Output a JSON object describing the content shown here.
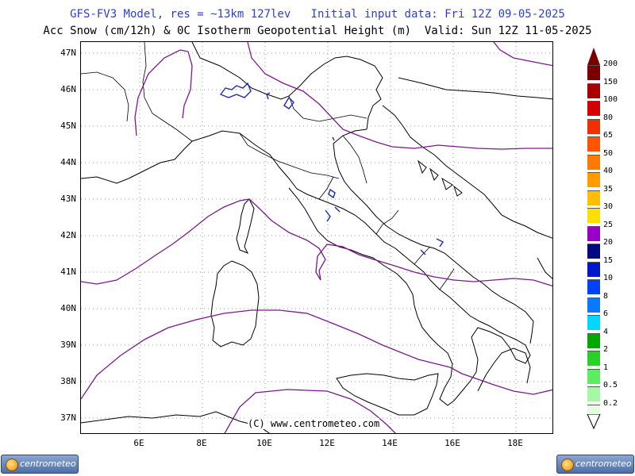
{
  "header": {
    "line1": "GFS-FV3 Model, res = ~13km 127lev   Initial input data: Fri 12Z 09-05-2025",
    "line2": "Acc Snow (cm/12h) & 0C Isotherm Geopotential Height (m)  Valid: Sun 12Z 11-05-2025"
  },
  "map": {
    "lat_labels": [
      "47N",
      "46N",
      "45N",
      "44N",
      "43N",
      "42N",
      "41N",
      "40N",
      "39N",
      "38N",
      "37N"
    ],
    "lon_labels": [
      "6E",
      "8E",
      "10E",
      "12E",
      "14E",
      "16E",
      "18E"
    ],
    "copyright": "(C) www.centrometeo.com",
    "colors": {
      "coast": "#000000",
      "isotherm": "#7a1a8a",
      "snow": "#1d2bb0",
      "grid": "#888888"
    }
  },
  "legend": {
    "items": [
      {
        "label": "200",
        "color": "#7a0000"
      },
      {
        "label": "150",
        "color": "#a80000"
      },
      {
        "label": "100",
        "color": "#d40000"
      },
      {
        "label": "80",
        "color": "#f03000"
      },
      {
        "label": "65",
        "color": "#ff5500"
      },
      {
        "label": "50",
        "color": "#ff7a00"
      },
      {
        "label": "40",
        "color": "#ff9c00"
      },
      {
        "label": "35",
        "color": "#ffbe00"
      },
      {
        "label": "30",
        "color": "#ffe000"
      },
      {
        "label": "25",
        "color": "#9a00c8"
      },
      {
        "label": "20",
        "color": "#000a80"
      },
      {
        "label": "15",
        "color": "#0018c8"
      },
      {
        "label": "10",
        "color": "#0040ff"
      },
      {
        "label": "8",
        "color": "#0a78ff"
      },
      {
        "label": "6",
        "color": "#00d8ff"
      },
      {
        "label": "4",
        "color": "#00a800"
      },
      {
        "label": "2",
        "color": "#28d028"
      },
      {
        "label": "1",
        "color": "#60ec60"
      },
      {
        "label": "0.5",
        "color": "#a6f8a6"
      },
      {
        "label": "0.2",
        "color": "#e2fde2"
      }
    ]
  },
  "logos": {
    "left": "centrometeo",
    "right": "centrometeo"
  }
}
